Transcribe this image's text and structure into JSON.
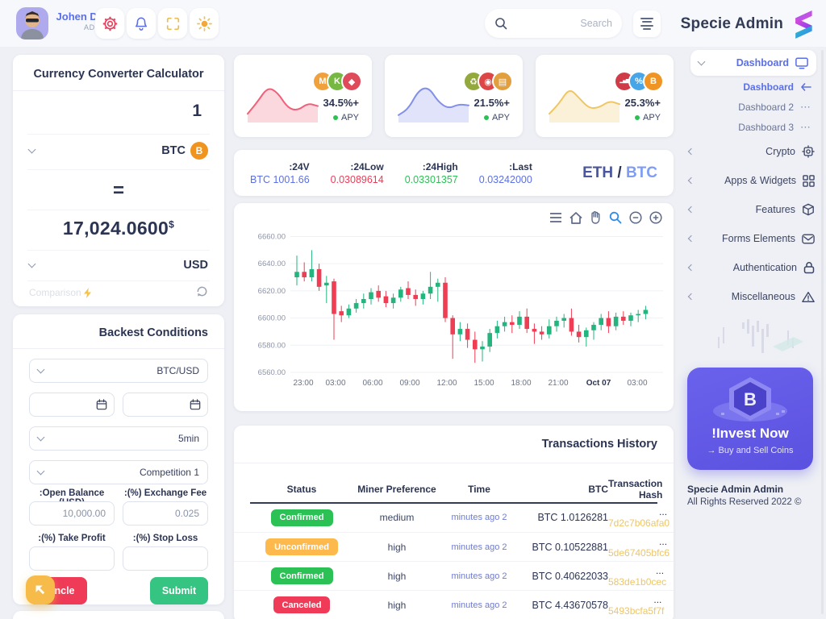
{
  "app": {
    "logo_text": "Specie Admin"
  },
  "header": {
    "user": {
      "name": "Johen Doe",
      "role": "ADMIN"
    },
    "search": {
      "placeholder": "Search"
    }
  },
  "sidebar": {
    "active_item": "Dashboard",
    "submenu": [
      {
        "label": "Dashboard"
      },
      {
        "label": "Dashboard 2",
        "trail": "⋯"
      },
      {
        "label": "Dashboard 3",
        "trail": "⋯"
      }
    ],
    "items": [
      {
        "label": "Crypto"
      },
      {
        "label": "Apps & Widgets"
      },
      {
        "label": "Features"
      },
      {
        "label": "Forms Elements"
      },
      {
        "label": "Authentication"
      },
      {
        "label": "Miscellaneous"
      }
    ],
    "invest": {
      "title": "!Invest Now",
      "subtitle": "→ Buy and Sell Coins"
    },
    "footer": {
      "brand": "Specie Admin Admin",
      "rights": "All Rights Reserved 2022 ©"
    }
  },
  "converter": {
    "title": "Currency Converter Calculator",
    "amount": "1",
    "from_currency": "BTC",
    "from_coin_glyph": "B",
    "equals": "=",
    "result": "17,024.0600",
    "result_symbol": "$",
    "to_currency": "USD",
    "compare_label": "Comparison"
  },
  "backtest": {
    "title": "Backest Conditions",
    "pair_select": "BTC/USD",
    "timeframe_select": "5min",
    "competition_select": "Competition 1",
    "fields": [
      {
        "label": ":Open Balance (USD)",
        "value": "10,000.00"
      },
      {
        "label": ":(%) Exchange Fee",
        "value": "0.025"
      },
      {
        "label": ":(%) Take Profit",
        "value": ""
      },
      {
        "label": ":(%) Stop Loss",
        "value": ""
      }
    ],
    "cancel_label": "Cancle",
    "submit_label": "Submit"
  },
  "mini_cards": [
    {
      "apy": "34.5%+",
      "apy_label": "APY",
      "color": "#ef617a",
      "spark": [
        0.12,
        0.5,
        0.95,
        0.78,
        0.3,
        0.22,
        0.45,
        0.36
      ],
      "coins": [
        {
          "glyph": "M",
          "bg": "#f0a13c",
          "name": "coin-m-icon"
        },
        {
          "glyph": "K",
          "bg": "#77b843",
          "name": "coin-k-icon"
        },
        {
          "glyph": "◆",
          "bg": "#df4b5b",
          "name": "coin-gem-icon"
        }
      ]
    },
    {
      "apy": "21.5%+",
      "apy_label": "APY",
      "color": "#8290e8",
      "spark": [
        0.08,
        0.28,
        0.85,
        0.95,
        0.48,
        0.28,
        0.42,
        0.38
      ],
      "coins": [
        {
          "glyph": "♻",
          "bg": "#93a83d",
          "name": "coin-recycle-icon"
        },
        {
          "glyph": "◉",
          "bg": "#dd4646",
          "name": "coin-target-icon"
        },
        {
          "glyph": "▤",
          "bg": "#e29f3d",
          "name": "coin-gold-icon"
        }
      ]
    },
    {
      "apy": "25.3%+",
      "apy_label": "APY",
      "color": "#efc662",
      "spark": [
        0.12,
        0.45,
        0.92,
        0.6,
        0.28,
        0.32,
        0.52,
        0.42
      ],
      "coins": [
        {
          "glyph": "▂▅▇",
          "bg": "#cf3b47",
          "name": "coin-chart-icon"
        },
        {
          "glyph": "%",
          "bg": "#47a5e8",
          "name": "coin-percent-icon"
        },
        {
          "glyph": "B",
          "bg": "#f09424",
          "name": "coin-bitcoin-icon"
        }
      ]
    }
  ],
  "pair_stats": {
    "base": "ETH",
    "separator": "/",
    "quote": "BTC",
    "stats": [
      {
        "label": ":24V",
        "value": "BTC 1001.66",
        "color": "#5b6fe6"
      },
      {
        "label": ":24Low",
        "value": "0.03089614",
        "color": "#ef3b57"
      },
      {
        "label": ":24High",
        "value": "0.03301357",
        "color": "#2bc155"
      },
      {
        "label": ":Last",
        "value": "0.03242000",
        "color": "#5b6fe6"
      }
    ]
  },
  "chart_data": {
    "type": "candlestick",
    "pair": "ETH / BTC",
    "up_color": "#24b47e",
    "down_color": "#ef3d54",
    "grid": true,
    "ylim": [
      6560,
      6668
    ],
    "y_ticks": [
      "6660.00",
      "6640.00",
      "6620.00",
      "6600.00",
      "6580.00",
      "6560.00"
    ],
    "x_ticks": [
      "23:00",
      "03:00",
      "06:00",
      "09:00",
      "12:00",
      "15:00",
      "18:00",
      "21:00",
      "Oct 07",
      "03:00"
    ],
    "candles": [
      [
        6630,
        6646,
        6624,
        6634
      ],
      [
        6634,
        6641,
        6627,
        6630
      ],
      [
        6630,
        6650,
        6627,
        6636
      ],
      [
        6636,
        6640,
        6620,
        6623
      ],
      [
        6624,
        6631,
        6611,
        6626
      ],
      [
        6627,
        6629,
        6584,
        6603
      ],
      [
        6605,
        6609,
        6597,
        6602
      ],
      [
        6602,
        6610,
        6600,
        6607
      ],
      [
        6607,
        6614,
        6604,
        6611
      ],
      [
        6611,
        6618,
        6607,
        6614
      ],
      [
        6614,
        6622,
        6610,
        6619
      ],
      [
        6620,
        6624,
        6612,
        6615
      ],
      [
        6616,
        6620,
        6608,
        6611
      ],
      [
        6611,
        6618,
        6607,
        6615
      ],
      [
        6615,
        6623,
        6612,
        6621
      ],
      [
        6622,
        6627,
        6614,
        6617
      ],
      [
        6617,
        6621,
        6609,
        6614
      ],
      [
        6614,
        6620,
        6610,
        6618
      ],
      [
        6618,
        6634,
        6614,
        6623
      ],
      [
        6623,
        6629,
        6612,
        6626
      ],
      [
        6626,
        6630,
        6597,
        6600
      ],
      [
        6600,
        6602,
        6570,
        6588
      ],
      [
        6588,
        6597,
        6583,
        6592
      ],
      [
        6592,
        6596,
        6578,
        6584
      ],
      [
        6584,
        6590,
        6567,
        6577
      ],
      [
        6577,
        6583,
        6568,
        6579
      ],
      [
        6579,
        6592,
        6575,
        6589
      ],
      [
        6589,
        6598,
        6585,
        6594
      ],
      [
        6594,
        6601,
        6590,
        6597
      ],
      [
        6597,
        6602,
        6589,
        6595
      ],
      [
        6595,
        6605,
        6592,
        6601
      ],
      [
        6601,
        6607,
        6589,
        6592
      ],
      [
        6592,
        6596,
        6581,
        6590
      ],
      [
        6590,
        6594,
        6584,
        6588
      ],
      [
        6588,
        6599,
        6585,
        6594
      ],
      [
        6594,
        6601,
        6590,
        6598
      ],
      [
        6598,
        6603,
        6593,
        6600
      ],
      [
        6600,
        6607,
        6587,
        6590
      ],
      [
        6590,
        6595,
        6582,
        6586
      ],
      [
        6586,
        6593,
        6579,
        6591
      ],
      [
        6591,
        6597,
        6584,
        6595
      ],
      [
        6595,
        6603,
        6591,
        6600
      ],
      [
        6600,
        6605,
        6589,
        6594
      ],
      [
        6594,
        6604,
        6591,
        6601
      ],
      [
        6601,
        6605,
        6595,
        6598
      ],
      [
        6598,
        6604,
        6594,
        6602
      ],
      [
        6602,
        6606,
        6597,
        6603
      ],
      [
        6603,
        6609,
        6599,
        6606
      ]
    ]
  },
  "transactions": {
    "title": "Transactions History",
    "columns": [
      "Status",
      "Miner Preference",
      "Time",
      "BTC",
      "Transaction Hash"
    ],
    "rows": [
      {
        "status": "Confirmed",
        "variant": "success",
        "miner": "medium",
        "time": "minutes ago 2",
        "btc": "BTC 1.0126281",
        "hash_prefix": "...",
        "hash": "7d2c7b06afa0"
      },
      {
        "status": "Unconfirmed",
        "variant": "warning",
        "miner": "high",
        "time": "minutes ago 2",
        "btc": "BTC 0.10522881",
        "hash_prefix": "...",
        "hash": "5de67405bfc6"
      },
      {
        "status": "Confirmed",
        "variant": "success",
        "miner": "high",
        "time": "minutes ago 2",
        "btc": "BTC 0.40622033",
        "hash_prefix": "...",
        "hash": "583de1b0cec"
      },
      {
        "status": "Canceled",
        "variant": "danger",
        "miner": "high",
        "time": "minutes ago 2",
        "btc": "BTC 4.43670578",
        "hash_prefix": "...",
        "hash": "5493bcfa5f7f"
      }
    ]
  }
}
